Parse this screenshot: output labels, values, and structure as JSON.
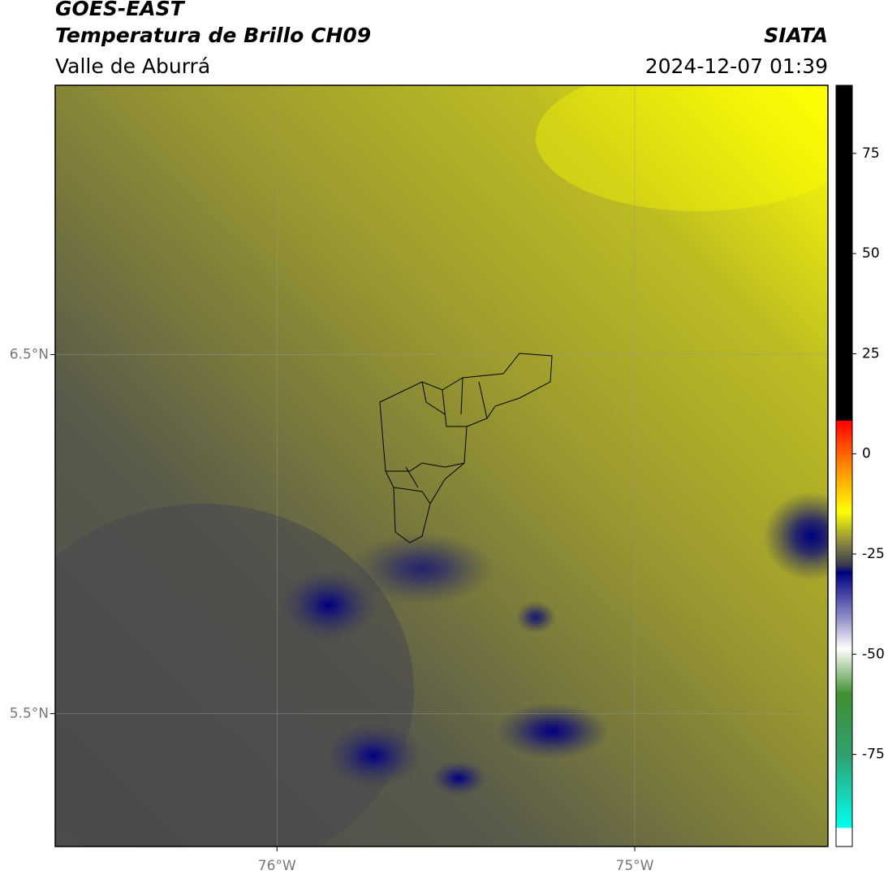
{
  "header": {
    "title": "GOES-EAST",
    "subtitle": "Temperatura de Brillo CH09",
    "source": "SIATA",
    "region": "Valle de Aburrá",
    "datetime": "2024-12-07 01:39"
  },
  "map": {
    "xlim": [
      -76.62,
      -74.46
    ],
    "ylim": [
      5.13,
      7.25
    ],
    "xticks": [
      {
        "value": -76,
        "label": "76°W"
      },
      {
        "value": -75,
        "label": "75°W"
      }
    ],
    "yticks": [
      {
        "value": 5.5,
        "label": "5.5°N"
      },
      {
        "value": 6.5,
        "label": "6.5°N"
      }
    ],
    "grid": true
  },
  "colorbar": {
    "lim": [
      -98,
      92
    ],
    "ticks": [
      75,
      50,
      25,
      0,
      -25,
      -50,
      -75
    ]
  }
}
